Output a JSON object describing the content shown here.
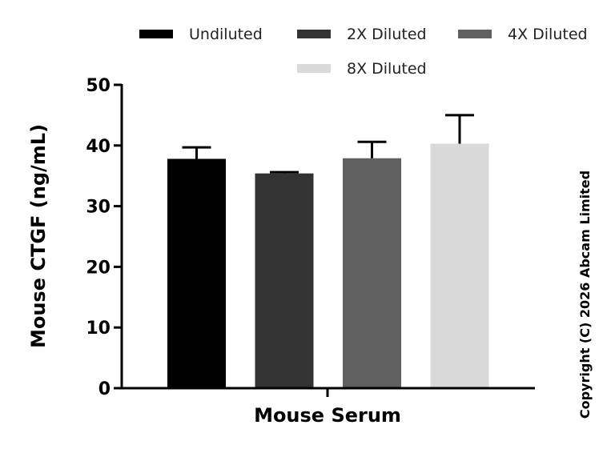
{
  "chart_data": {
    "type": "bar",
    "categories": [
      "Mouse Serum"
    ],
    "xlabel": "Mouse Serum",
    "ylabel": "Mouse CTGF (ng/mL)",
    "ylim": [
      0,
      50
    ],
    "yticks": [
      0,
      10,
      20,
      30,
      40,
      50
    ],
    "grid": false,
    "legend_placement": "top",
    "series": [
      {
        "name": "Undiluted",
        "values": [
          37.8
        ],
        "error": [
          1.9
        ],
        "color": "#000000"
      },
      {
        "name": "2X Diluted",
        "values": [
          35.4
        ],
        "error": [
          0.2
        ],
        "color": "#333333"
      },
      {
        "name": "4X Diluted",
        "values": [
          37.9
        ],
        "error": [
          2.7
        ],
        "color": "#606060"
      },
      {
        "name": "8X Diluted",
        "values": [
          40.3
        ],
        "error": [
          4.7
        ],
        "color": "#d9d9d9"
      }
    ]
  },
  "copyright": "Copyright (C) 2026 Abcam Limited"
}
